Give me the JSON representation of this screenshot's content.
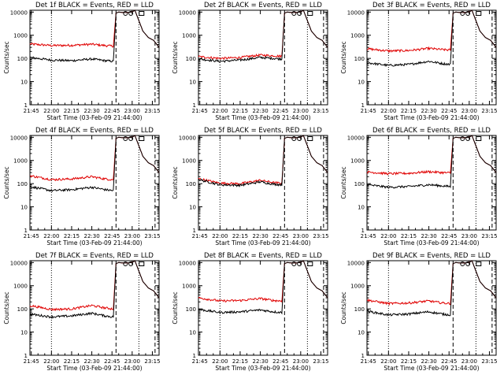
{
  "colors": {
    "events": "#000000",
    "lld": "#e00000",
    "axes": "#000000",
    "background": "#ffffff"
  },
  "xlabel": "Start Time (03-Feb-09 21:44:00)",
  "ylabel": "Counts/sec",
  "xticks": [
    "21:45",
    "22:00",
    "22:15",
    "22:30",
    "22:45",
    "23:00",
    "23:15"
  ],
  "yticks": [
    "1",
    "10",
    "100",
    "1000",
    "10000"
  ],
  "chart_data": [
    {
      "type": "line",
      "title": "Det 1f BLACK = Events, RED = LLD",
      "x_range": [
        "21:44",
        "23:20"
      ],
      "ylim": [
        1,
        12000
      ],
      "yscale": "log",
      "series": [
        {
          "name": "Events",
          "x": [
            "21:44",
            "22:00",
            "22:15",
            "22:30",
            "22:40",
            "22:46",
            "22:48",
            "22:50",
            "22:54",
            "23:00",
            "23:02",
            "23:06",
            "23:08",
            "23:12",
            "23:16",
            "23:20"
          ],
          "y": [
            110,
            85,
            80,
            95,
            80,
            75,
            9000,
            10000,
            9500,
            10000,
            12000,
            3000,
            1500,
            800,
            600,
            300
          ]
        },
        {
          "name": "LLD",
          "x": [
            "21:44",
            "22:00",
            "22:15",
            "22:30",
            "22:40",
            "22:46",
            "22:48",
            "22:50",
            "22:54",
            "23:00",
            "23:02",
            "23:06",
            "23:08",
            "23:12",
            "23:16",
            "23:20"
          ],
          "y": [
            420,
            360,
            370,
            410,
            360,
            340,
            9000,
            10000,
            9500,
            10000,
            12000,
            3000,
            1500,
            800,
            600,
            300
          ]
        }
      ]
    },
    {
      "type": "line",
      "title": "Det 2f BLACK = Events, RED = LLD",
      "x_range": [
        "21:44",
        "23:20"
      ],
      "ylim": [
        1,
        12000
      ],
      "yscale": "log",
      "series": [
        {
          "name": "Events",
          "x": [
            "21:44",
            "22:00",
            "22:15",
            "22:30",
            "22:40",
            "22:46",
            "22:48",
            "22:50",
            "22:54",
            "23:00",
            "23:02",
            "23:06",
            "23:08",
            "23:12",
            "23:16",
            "23:20"
          ],
          "y": [
            95,
            75,
            85,
            110,
            100,
            95,
            9000,
            10000,
            9500,
            10000,
            12000,
            3000,
            1500,
            800,
            600,
            300
          ]
        },
        {
          "name": "LLD",
          "x": [
            "21:44",
            "22:00",
            "22:15",
            "22:30",
            "22:40",
            "22:46",
            "22:48",
            "22:50",
            "22:54",
            "23:00",
            "23:02",
            "23:06",
            "23:08",
            "23:12",
            "23:16",
            "23:20"
          ],
          "y": [
            120,
            100,
            110,
            140,
            130,
            125,
            9000,
            10000,
            9500,
            10000,
            12000,
            3000,
            1500,
            800,
            600,
            300
          ]
        }
      ]
    },
    {
      "type": "line",
      "title": "Det 3f BLACK = Events, RED = LLD",
      "x_range": [
        "21:44",
        "23:20"
      ],
      "ylim": [
        1,
        12000
      ],
      "yscale": "log",
      "series": [
        {
          "name": "Events",
          "x": [
            "21:44",
            "22:00",
            "22:15",
            "22:30",
            "22:40",
            "22:46",
            "22:48",
            "22:50",
            "22:54",
            "23:00",
            "23:02",
            "23:06",
            "23:08",
            "23:12",
            "23:16",
            "23:20"
          ],
          "y": [
            65,
            50,
            55,
            75,
            60,
            55,
            9000,
            10000,
            9500,
            10000,
            12000,
            3000,
            1500,
            800,
            600,
            300
          ]
        },
        {
          "name": "LLD",
          "x": [
            "21:44",
            "22:00",
            "22:15",
            "22:30",
            "22:40",
            "22:46",
            "22:48",
            "22:50",
            "22:54",
            "23:00",
            "23:02",
            "23:06",
            "23:08",
            "23:12",
            "23:16",
            "23:20"
          ],
          "y": [
            260,
            210,
            220,
            270,
            240,
            230,
            9000,
            10000,
            9500,
            10000,
            12000,
            3000,
            1500,
            800,
            600,
            300
          ]
        }
      ]
    },
    {
      "type": "line",
      "title": "Det 4f BLACK = Events, RED = LLD",
      "x_range": [
        "21:44",
        "23:20"
      ],
      "ylim": [
        1,
        12000
      ],
      "yscale": "log",
      "series": [
        {
          "name": "Events",
          "x": [
            "21:44",
            "22:00",
            "22:15",
            "22:30",
            "22:40",
            "22:46",
            "22:48",
            "22:50",
            "22:54",
            "23:00",
            "23:02",
            "23:06",
            "23:08",
            "23:12",
            "23:16",
            "23:20"
          ],
          "y": [
            75,
            50,
            55,
            70,
            55,
            50,
            9000,
            10000,
            9500,
            10000,
            12000,
            3000,
            1500,
            800,
            600,
            300
          ]
        },
        {
          "name": "LLD",
          "x": [
            "21:44",
            "22:00",
            "22:15",
            "22:30",
            "22:40",
            "22:46",
            "22:48",
            "22:50",
            "22:54",
            "23:00",
            "23:02",
            "23:06",
            "23:08",
            "23:12",
            "23:16",
            "23:20"
          ],
          "y": [
            220,
            150,
            160,
            200,
            160,
            150,
            9000,
            10000,
            9500,
            10000,
            12000,
            3000,
            1500,
            800,
            600,
            300
          ]
        }
      ]
    },
    {
      "type": "line",
      "title": "Det 5f BLACK = Events, RED = LLD",
      "x_range": [
        "21:44",
        "23:20"
      ],
      "ylim": [
        1,
        12000
      ],
      "yscale": "log",
      "series": [
        {
          "name": "Events",
          "x": [
            "21:44",
            "22:00",
            "22:15",
            "22:30",
            "22:40",
            "22:46",
            "22:48",
            "22:50",
            "22:54",
            "23:00",
            "23:02",
            "23:06",
            "23:08",
            "23:12",
            "23:16",
            "23:20"
          ],
          "y": [
            150,
            90,
            85,
            120,
            95,
            90,
            9000,
            10000,
            9500,
            10000,
            12000,
            3000,
            1500,
            800,
            600,
            300
          ]
        },
        {
          "name": "LLD",
          "x": [
            "21:44",
            "22:00",
            "22:15",
            "22:30",
            "22:40",
            "22:46",
            "22:48",
            "22:50",
            "22:54",
            "23:00",
            "23:02",
            "23:06",
            "23:08",
            "23:12",
            "23:16",
            "23:20"
          ],
          "y": [
            165,
            105,
            100,
            140,
            110,
            105,
            9000,
            10000,
            9500,
            10000,
            12000,
            3000,
            1500,
            800,
            600,
            300
          ]
        }
      ]
    },
    {
      "type": "line",
      "title": "Det 6f BLACK = Events, RED = LLD",
      "x_range": [
        "21:44",
        "23:20"
      ],
      "ylim": [
        1,
        12000
      ],
      "yscale": "log",
      "series": [
        {
          "name": "Events",
          "x": [
            "21:44",
            "22:00",
            "22:15",
            "22:30",
            "22:40",
            "22:46",
            "22:48",
            "22:50",
            "22:54",
            "23:00",
            "23:02",
            "23:06",
            "23:08",
            "23:12",
            "23:16",
            "23:20"
          ],
          "y": [
            90,
            70,
            75,
            90,
            80,
            75,
            9000,
            10000,
            9500,
            10000,
            12000,
            3000,
            1500,
            800,
            600,
            300
          ]
        },
        {
          "name": "LLD",
          "x": [
            "21:44",
            "22:00",
            "22:15",
            "22:30",
            "22:40",
            "22:46",
            "22:48",
            "22:50",
            "22:54",
            "23:00",
            "23:02",
            "23:06",
            "23:08",
            "23:12",
            "23:16",
            "23:20"
          ],
          "y": [
            320,
            270,
            280,
            330,
            300,
            290,
            9000,
            10000,
            9500,
            10000,
            12000,
            3000,
            1500,
            800,
            600,
            300
          ]
        }
      ]
    },
    {
      "type": "line",
      "title": "Det 7f BLACK = Events, RED = LLD",
      "x_range": [
        "21:44",
        "23:20"
      ],
      "ylim": [
        1,
        12000
      ],
      "yscale": "log",
      "series": [
        {
          "name": "Events",
          "x": [
            "21:44",
            "22:00",
            "22:15",
            "22:30",
            "22:40",
            "22:46",
            "22:48",
            "22:50",
            "22:54",
            "23:00",
            "23:02",
            "23:06",
            "23:08",
            "23:12",
            "23:16",
            "23:20"
          ],
          "y": [
            60,
            45,
            50,
            65,
            50,
            45,
            9000,
            10000,
            9500,
            10000,
            12000,
            3000,
            1500,
            800,
            600,
            300
          ]
        },
        {
          "name": "LLD",
          "x": [
            "21:44",
            "22:00",
            "22:15",
            "22:30",
            "22:40",
            "22:46",
            "22:48",
            "22:50",
            "22:54",
            "23:00",
            "23:02",
            "23:06",
            "23:08",
            "23:12",
            "23:16",
            "23:20"
          ],
          "y": [
            140,
            95,
            100,
            140,
            110,
            100,
            9000,
            10000,
            9500,
            10000,
            12000,
            3000,
            1500,
            800,
            600,
            300
          ]
        }
      ]
    },
    {
      "type": "line",
      "title": "Det 8f BLACK = Events, RED = LLD",
      "x_range": [
        "21:44",
        "23:20"
      ],
      "ylim": [
        1,
        12000
      ],
      "yscale": "log",
      "series": [
        {
          "name": "Events",
          "x": [
            "21:44",
            "22:00",
            "22:15",
            "22:30",
            "22:40",
            "22:46",
            "22:48",
            "22:50",
            "22:54",
            "23:00",
            "23:02",
            "23:06",
            "23:08",
            "23:12",
            "23:16",
            "23:20"
          ],
          "y": [
            95,
            70,
            75,
            90,
            75,
            70,
            9000,
            10000,
            9500,
            10000,
            12000,
            3000,
            1500,
            800,
            600,
            300
          ]
        },
        {
          "name": "LLD",
          "x": [
            "21:44",
            "22:00",
            "22:15",
            "22:30",
            "22:40",
            "22:46",
            "22:48",
            "22:50",
            "22:54",
            "23:00",
            "23:02",
            "23:06",
            "23:08",
            "23:12",
            "23:16",
            "23:20"
          ],
          "y": [
            300,
            220,
            230,
            280,
            230,
            220,
            9000,
            10000,
            9500,
            10000,
            12000,
            3000,
            1500,
            800,
            600,
            300
          ]
        }
      ]
    },
    {
      "type": "line",
      "title": "Det 9f BLACK = Events, RED = LLD",
      "x_range": [
        "21:44",
        "23:20"
      ],
      "ylim": [
        1,
        12000
      ],
      "yscale": "log",
      "series": [
        {
          "name": "Events",
          "x": [
            "21:44",
            "22:00",
            "22:15",
            "22:30",
            "22:40",
            "22:46",
            "22:48",
            "22:50",
            "22:54",
            "23:00",
            "23:02",
            "23:06",
            "23:08",
            "23:12",
            "23:16",
            "23:20"
          ],
          "y": [
            80,
            55,
            60,
            75,
            60,
            55,
            9000,
            10000,
            9500,
            10000,
            12000,
            3000,
            1500,
            800,
            600,
            300
          ]
        },
        {
          "name": "LLD",
          "x": [
            "21:44",
            "22:00",
            "22:15",
            "22:30",
            "22:40",
            "22:46",
            "22:48",
            "22:50",
            "22:54",
            "23:00",
            "23:02",
            "23:06",
            "23:08",
            "23:12",
            "23:16",
            "23:20"
          ],
          "y": [
            240,
            170,
            180,
            220,
            180,
            170,
            9000,
            10000,
            9500,
            10000,
            12000,
            3000,
            1500,
            800,
            600,
            300
          ]
        }
      ]
    }
  ]
}
